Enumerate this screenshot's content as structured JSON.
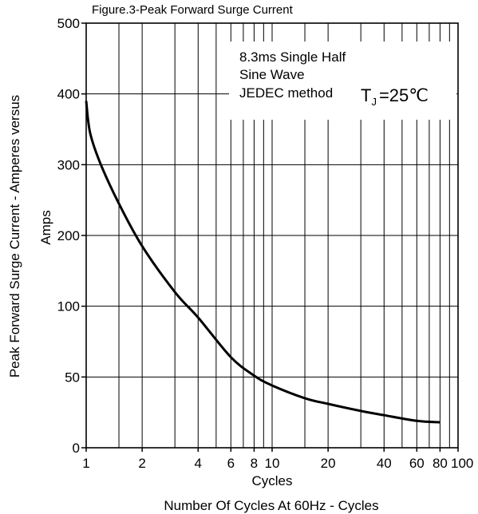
{
  "chart_data": {
    "type": "line",
    "title": "Figure.3-Peak Forward Surge Current",
    "xlabel": "Cycles",
    "xlabel2": "Number Of Cycles At 60Hz - Cycles",
    "ylabel": "Peak Forward Surge Current - Amperes versus",
    "ylabel_sub": "Amps",
    "x_scale": "log",
    "xlim": [
      1,
      100
    ],
    "x_ticks": [
      1,
      2,
      4,
      6,
      8,
      10,
      20,
      40,
      60,
      80,
      100
    ],
    "x_tick_labels": [
      "1",
      "2",
      "4",
      "6",
      "8",
      "10",
      "20",
      "40",
      "60",
      "80",
      "100"
    ],
    "y_ticks": [
      0,
      50,
      100,
      200,
      300,
      400,
      500
    ],
    "y_tick_labels": [
      "0",
      "50",
      "100",
      "200",
      "300",
      "400",
      "500"
    ],
    "grid": true,
    "annotation": {
      "lines": [
        "8.3ms Single Half",
        "Sine Wave",
        "JEDEC method"
      ],
      "temp_symbol": "T",
      "temp_sub": "J",
      "temp_value": "=25℃"
    },
    "series": [
      {
        "x": [
          1,
          1.05,
          1.2,
          1.5,
          2,
          3,
          4,
          6,
          8,
          10,
          15,
          20,
          30,
          40,
          60,
          80
        ],
        "values": [
          390,
          345,
          300,
          245,
          185,
          120,
          92,
          64,
          51,
          44,
          35,
          31,
          26,
          23,
          19,
          18
        ]
      }
    ]
  }
}
